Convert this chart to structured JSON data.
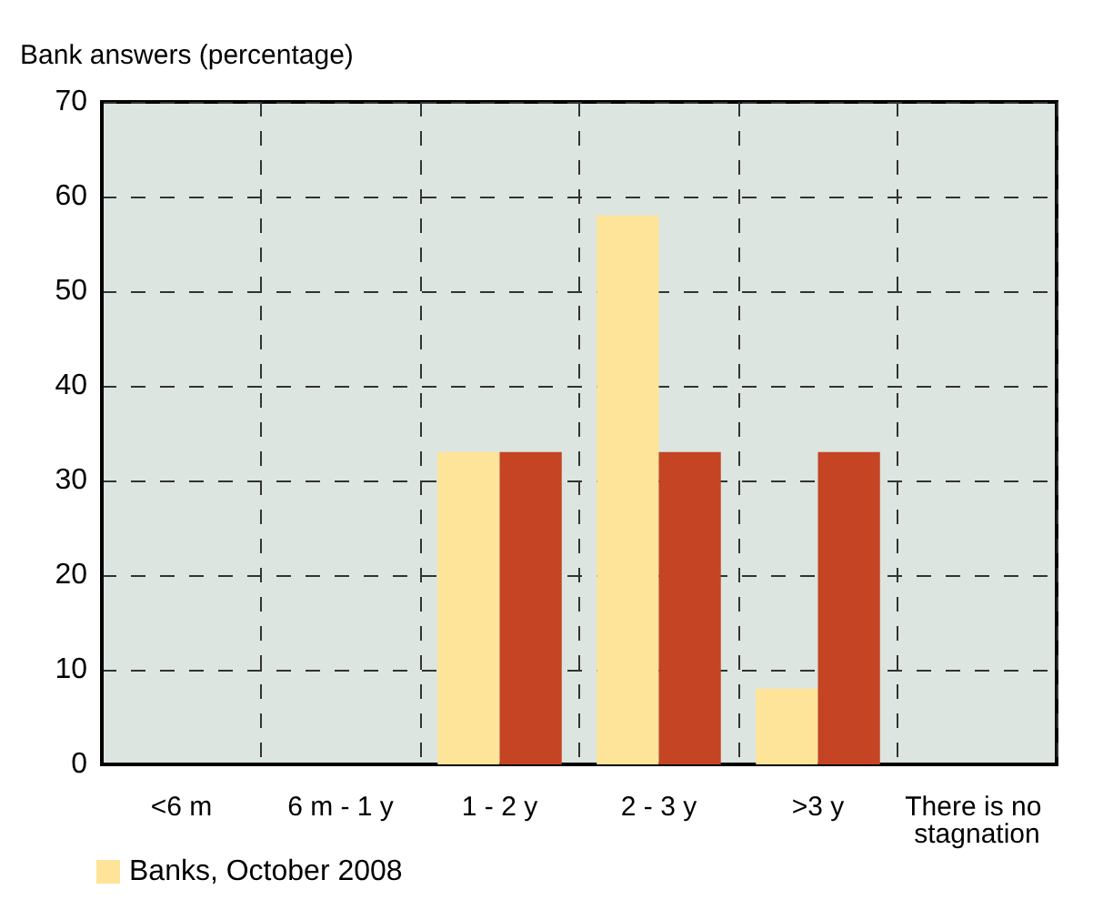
{
  "chart_data": {
    "type": "bar",
    "ylabel": "Bank answers (percentage)",
    "categories": [
      "<6 m",
      "6 m - 1 y",
      "1 - 2 y",
      "2 - 3 y",
      ">3 y",
      "There is no stagnation"
    ],
    "series": [
      {
        "name": "Banks, October 2008",
        "color": "#fde498",
        "values": [
          0,
          0,
          33,
          58,
          8,
          0
        ]
      },
      {
        "color": "#c44424",
        "values": [
          0,
          0,
          33,
          33,
          33,
          0
        ]
      }
    ],
    "ylim": [
      0,
      70
    ],
    "yticks": [
      0,
      10,
      20,
      30,
      40,
      50,
      60,
      70
    ],
    "grid": true,
    "legend": "bottom left"
  }
}
